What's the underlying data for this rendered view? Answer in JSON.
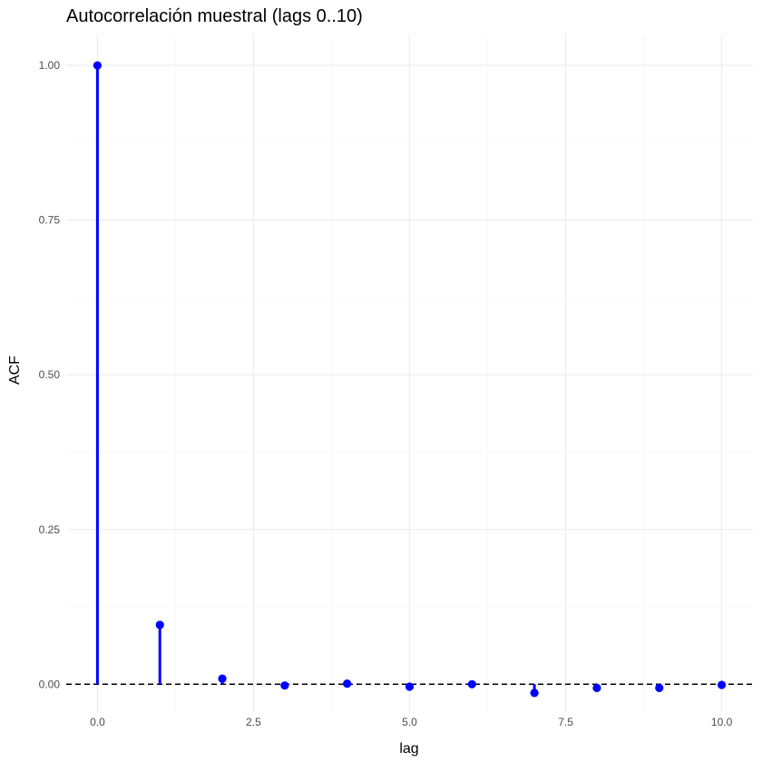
{
  "chart_data": {
    "type": "stem",
    "title": "Autocorrelación muestral (lags 0..10)",
    "xlabel": "lag",
    "ylabel": "ACF",
    "x": [
      0,
      1,
      2,
      3,
      4,
      5,
      6,
      7,
      8,
      9,
      10
    ],
    "values": [
      1.0,
      0.096,
      0.009,
      -0.002,
      0.001,
      -0.004,
      0.0,
      -0.014,
      -0.006,
      -0.006,
      -0.001
    ],
    "xlim": [
      -0.5,
      10.5
    ],
    "ylim": [
      -0.045,
      1.05
    ],
    "x_ticks": [
      0,
      2.5,
      5,
      7.5,
      10
    ],
    "x_tick_labels": [
      "0.0",
      "2.5",
      "5.0",
      "7.5",
      "10.0"
    ],
    "y_ticks": [
      0,
      0.25,
      0.5,
      0.75,
      1.0
    ],
    "y_tick_labels": [
      "0.00",
      "0.25",
      "0.50",
      "0.75",
      "1.00"
    ],
    "reference_line": 0,
    "reference_line_style": "dashed",
    "grid": true,
    "series_color": "#0000ff",
    "reference_color": "#000000"
  }
}
